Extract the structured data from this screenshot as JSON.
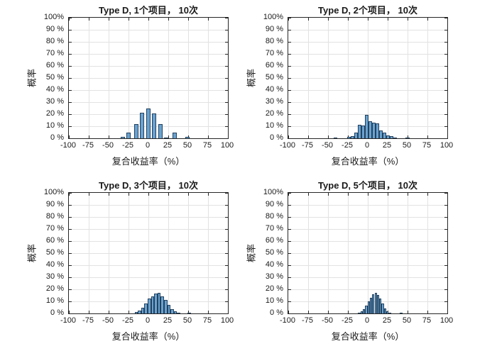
{
  "colors": {
    "bar_fill": "#6aa2cf",
    "bar_edge": "#23415e",
    "grid": "#e2e2e2",
    "frame": "#262626",
    "text": "#1a1a1a"
  },
  "axes": {
    "x_ticks": [
      -100,
      -75,
      -50,
      -25,
      0,
      25,
      50,
      75,
      100
    ],
    "x_tick_labels": [
      "-100",
      "-75",
      "-50",
      "-25",
      "0",
      "25",
      "50",
      "75",
      "100"
    ],
    "y_ticks": [
      0,
      10,
      20,
      30,
      40,
      50,
      60,
      70,
      80,
      90,
      100
    ],
    "y_tick_labels": [
      "0 %",
      "10 %",
      "20 %",
      "30 %",
      "40 %",
      "50 %",
      "60 %",
      "70 %",
      "80 %",
      "90 %",
      "100%"
    ],
    "grid": "on",
    "xlim": [
      -100,
      100
    ],
    "ylim": [
      0,
      100
    ]
  },
  "chart_data": [
    {
      "type": "bar",
      "title": "Type D, 1个项目， 10次",
      "xlabel": "复合收益率（%）",
      "ylabel": "概率",
      "xlim": [
        -100,
        100
      ],
      "ylim": [
        0,
        100
      ],
      "bar_width": 5.5,
      "bars": [
        {
          "x": -32,
          "p": 1.0
        },
        {
          "x": -25,
          "p": 4.5
        },
        {
          "x": -15,
          "p": 12.0
        },
        {
          "x": -8,
          "p": 21.0
        },
        {
          "x": 0,
          "p": 24.5
        },
        {
          "x": 7,
          "p": 20.5
        },
        {
          "x": 15,
          "p": 12.0
        },
        {
          "x": 22,
          "p": 0.8
        },
        {
          "x": 33,
          "p": 4.5
        },
        {
          "x": 49,
          "p": 1.0
        }
      ]
    },
    {
      "type": "bar",
      "title": "Type D, 2个项目， 10次",
      "xlabel": "复合收益率（%）",
      "ylabel": "概率",
      "xlim": [
        -100,
        100
      ],
      "ylim": [
        0,
        100
      ],
      "bar_width": 4.5,
      "bars": [
        {
          "x": -41,
          "p": 0.5
        },
        {
          "x": -24,
          "p": 1.0
        },
        {
          "x": -19.5,
          "p": 2.0
        },
        {
          "x": -15,
          "p": 5.0
        },
        {
          "x": -10.5,
          "p": 11.0
        },
        {
          "x": -6,
          "p": 10.5
        },
        {
          "x": -1.5,
          "p": 19.5
        },
        {
          "x": 3,
          "p": 14.0
        },
        {
          "x": 7.5,
          "p": 13.0
        },
        {
          "x": 12,
          "p": 12.5
        },
        {
          "x": 16.5,
          "p": 6.5
        },
        {
          "x": 21,
          "p": 4.5
        },
        {
          "x": 25.5,
          "p": 2.5
        },
        {
          "x": 30,
          "p": 1.5
        },
        {
          "x": 34.5,
          "p": 0.8
        },
        {
          "x": 50,
          "p": 0.5
        }
      ]
    },
    {
      "type": "bar",
      "title": "Type D, 3个项目， 10次",
      "xlabel": "复合收益率（%）",
      "ylabel": "概率",
      "xlim": [
        -100,
        100
      ],
      "ylim": [
        0,
        100
      ],
      "bar_width": 4.1,
      "bars": [
        {
          "x": -15.3,
          "p": 1.0
        },
        {
          "x": -11.2,
          "p": 2.2
        },
        {
          "x": -7.1,
          "p": 4.7
        },
        {
          "x": -3.0,
          "p": 8.2
        },
        {
          "x": 1.1,
          "p": 12.5
        },
        {
          "x": 5.2,
          "p": 14.4
        },
        {
          "x": 9.3,
          "p": 16.2
        },
        {
          "x": 13.5,
          "p": 17.1
        },
        {
          "x": 17.6,
          "p": 14.4
        },
        {
          "x": 21.7,
          "p": 10.9
        },
        {
          "x": 25.8,
          "p": 7.1
        },
        {
          "x": 29.9,
          "p": 3.6
        },
        {
          "x": 34.0,
          "p": 1.6
        },
        {
          "x": 38.1,
          "p": 0.7
        },
        {
          "x": 51.5,
          "p": 0.5
        }
      ]
    },
    {
      "type": "bar",
      "title": "Type D, 5个项目， 10次",
      "xlabel": "复合收益率（%）",
      "ylabel": "概率",
      "xlim": [
        -100,
        100
      ],
      "ylim": [
        0,
        100
      ],
      "bar_width": 2.95,
      "bars": [
        {
          "x": -10.6,
          "p": 0.7
        },
        {
          "x": -7.7,
          "p": 1.6
        },
        {
          "x": -4.7,
          "p": 3.6
        },
        {
          "x": -1.8,
          "p": 6.5
        },
        {
          "x": 1.1,
          "p": 10.0
        },
        {
          "x": 4.1,
          "p": 13.2
        },
        {
          "x": 7.0,
          "p": 15.8
        },
        {
          "x": 10.0,
          "p": 17.1
        },
        {
          "x": 12.9,
          "p": 15.2
        },
        {
          "x": 15.8,
          "p": 12.5
        },
        {
          "x": 18.8,
          "p": 8.0
        },
        {
          "x": 21.7,
          "p": 4.2
        },
        {
          "x": 24.6,
          "p": 1.8
        },
        {
          "x": 27.6,
          "p": 0.7
        },
        {
          "x": 42,
          "p": 0.4
        }
      ]
    }
  ]
}
